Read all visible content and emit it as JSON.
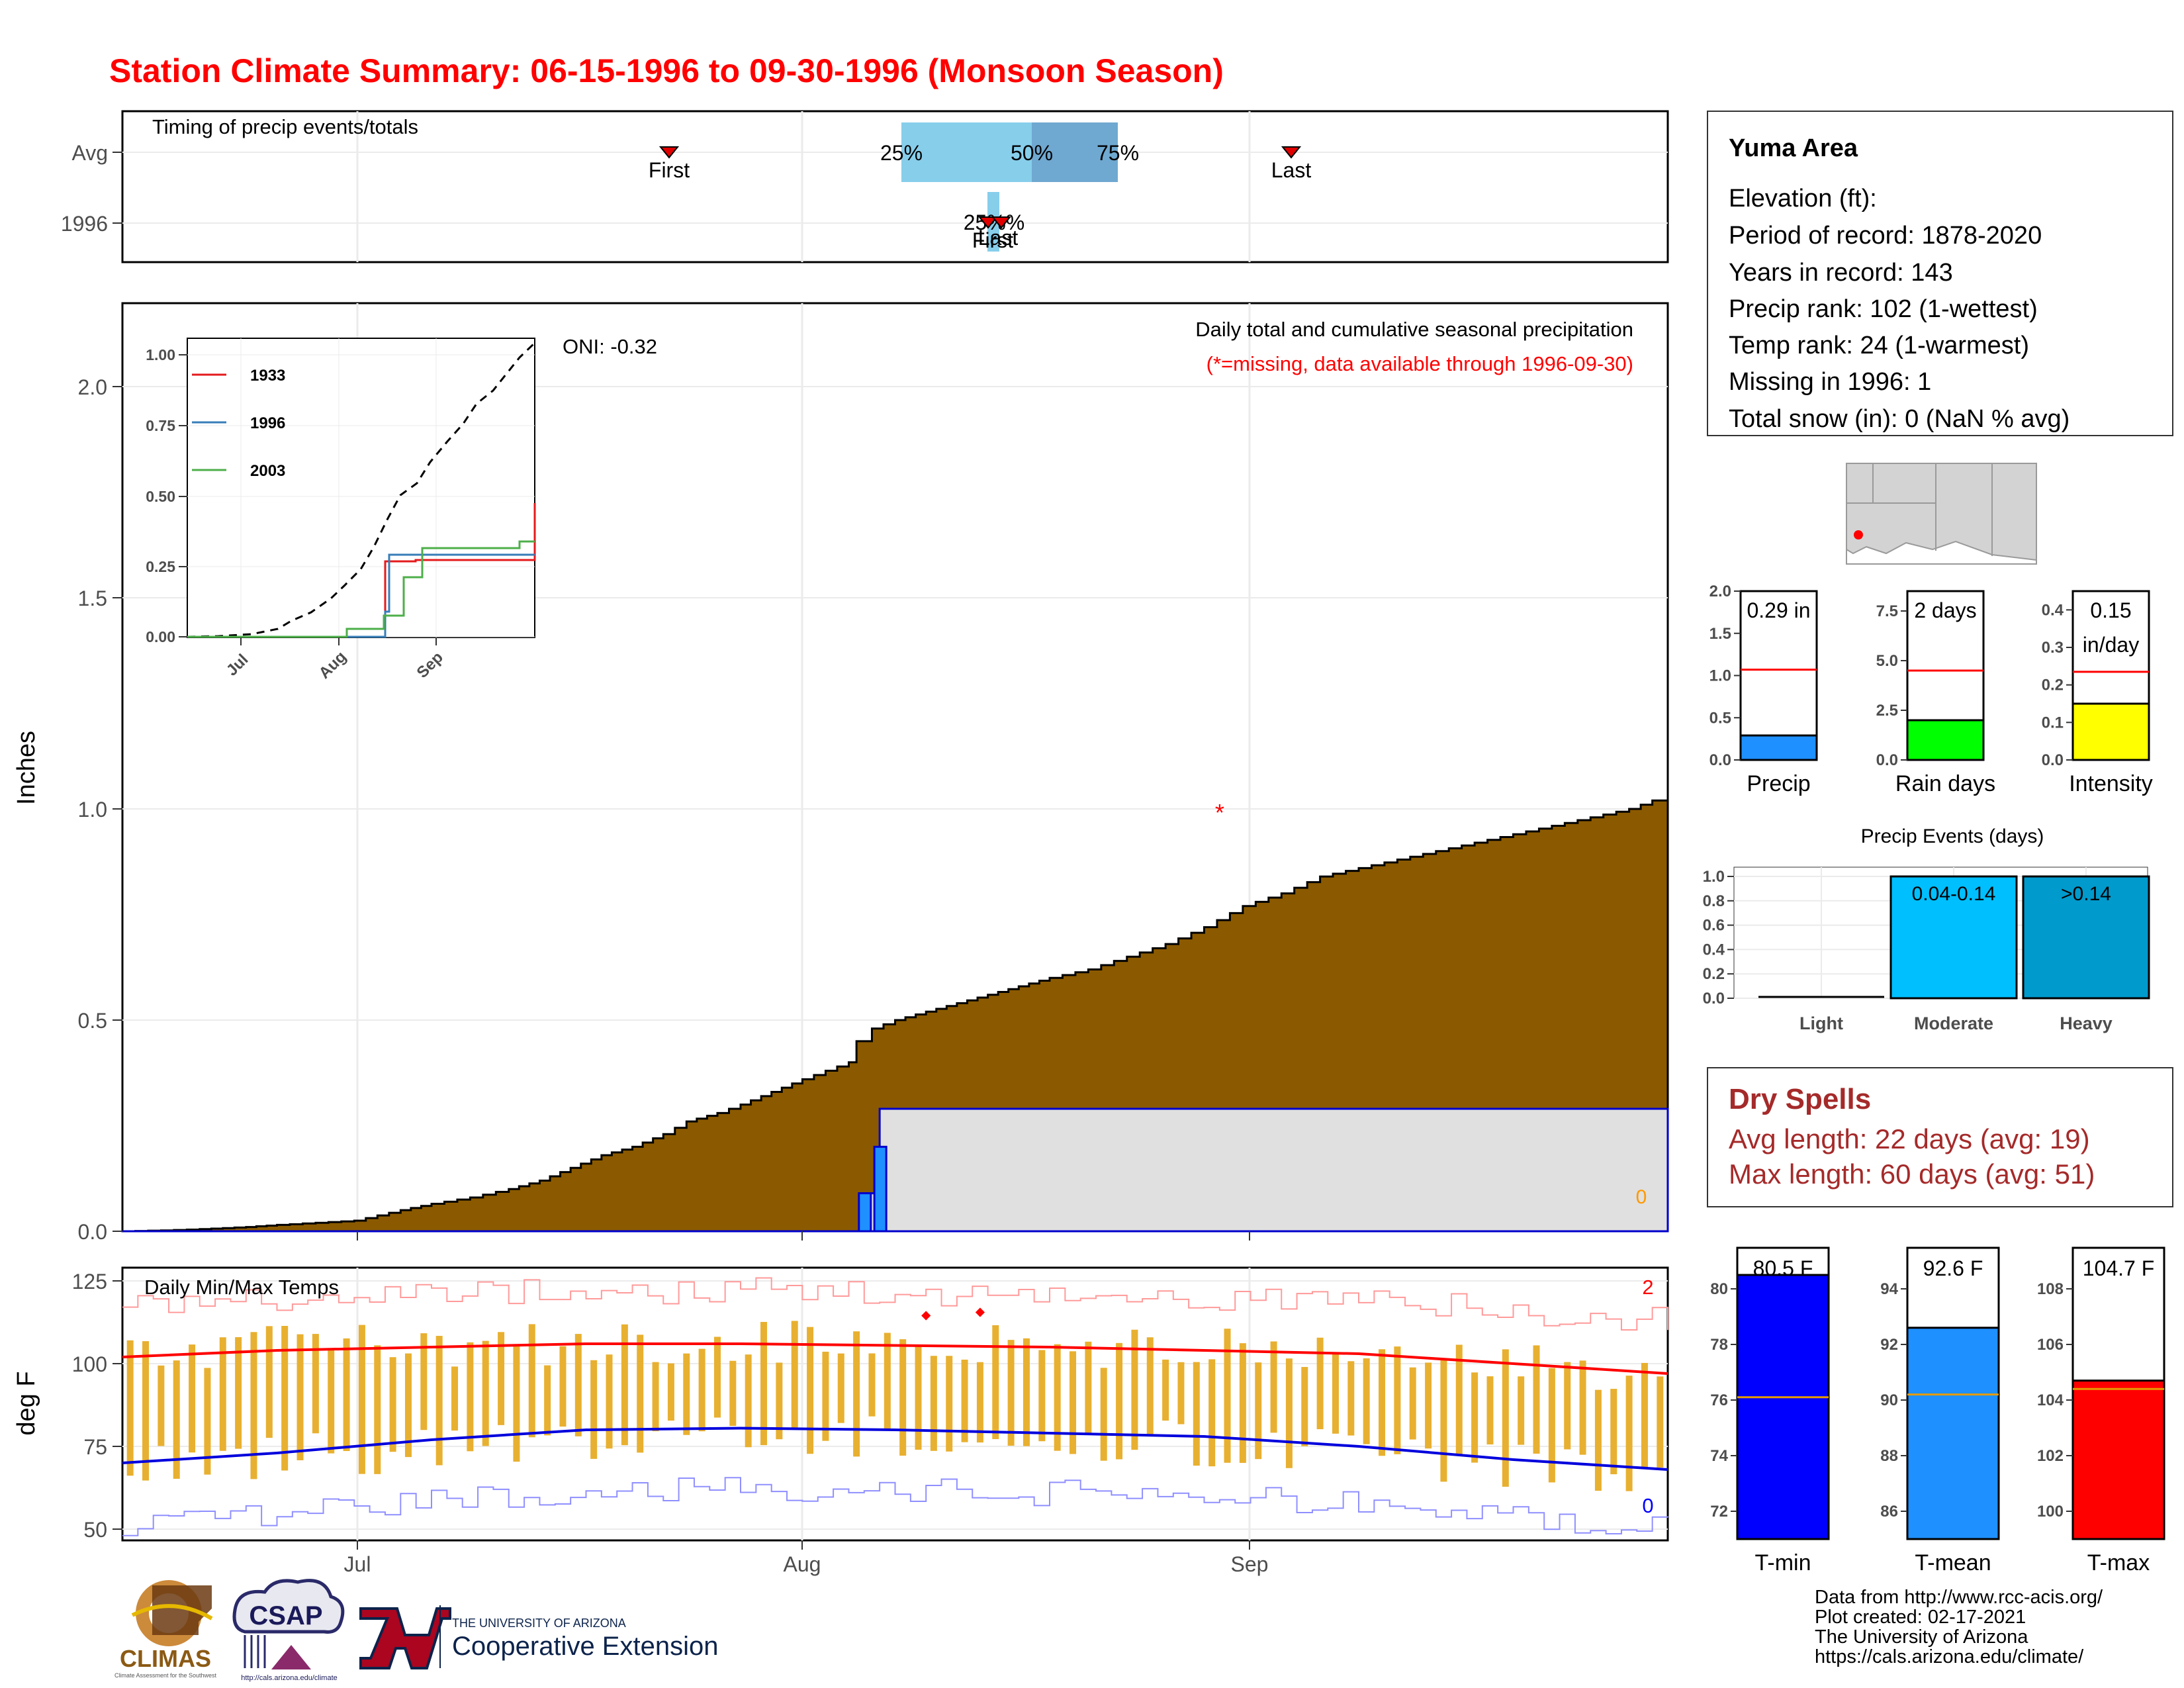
{
  "title": "Station Climate Summary: 06-15-1996 to 09-30-1996 (Monsoon Season)",
  "colors": {
    "title": "#ff0000",
    "precip_cum": "#8b5a00",
    "precip_cur": "#1e90ff",
    "tmin": "#0000ff",
    "tmax": "#ff0000",
    "trange": "#e8b030",
    "rain_days": "#00ff00",
    "intensity": "#ffff00",
    "moderate": "#00bfff",
    "heavy": "#009acd",
    "dry": "#a52a2a"
  },
  "timing": {
    "label": "Timing of precip events/totals",
    "rows": [
      "Avg",
      "1996"
    ],
    "avg": {
      "first_label": "First",
      "last_label": "Last",
      "p25": "25%",
      "p50": "50%",
      "p75": "75%"
    },
    "yr": {
      "overlap_label": "25%%",
      "first_label": "First",
      "last_label": "Last"
    }
  },
  "x_axis": {
    "ticks": [
      "Jul",
      "Aug",
      "Sep"
    ]
  },
  "precip": {
    "ylabel": "Inches",
    "title": "Daily total and cumulative seasonal precipitation",
    "subtitle": "(*=missing, data available through 1996-09-30)",
    "oni": "ONI: -0.32",
    "y_ticks": [
      "0.0",
      "0.5",
      "1.0",
      "1.5",
      "2.0"
    ],
    "missing_marker": "*",
    "count_label": "0",
    "chart_data": {
      "type": "area",
      "x_start": "06-15",
      "x_end": "09-30",
      "ylim": [
        0,
        2.2
      ],
      "avg_cumulative_points": [
        [
          0,
          0.0
        ],
        [
          5,
          0.002
        ],
        [
          10,
          0.005
        ],
        [
          16,
          0.01
        ],
        [
          20,
          0.015
        ],
        [
          25,
          0.02
        ],
        [
          30,
          0.025
        ],
        [
          36,
          0.05
        ],
        [
          40,
          0.065
        ],
        [
          45,
          0.08
        ],
        [
          50,
          0.1
        ],
        [
          54,
          0.12
        ],
        [
          58,
          0.15
        ],
        [
          62,
          0.18
        ],
        [
          66,
          0.2
        ],
        [
          70,
          0.23
        ],
        [
          73,
          0.26
        ],
        [
          77,
          0.28
        ],
        [
          80,
          0.3
        ],
        [
          84,
          0.33
        ],
        [
          88,
          0.36
        ],
        [
          91,
          0.38
        ],
        [
          94,
          0.4
        ],
        [
          95,
          0.45
        ],
        [
          97,
          0.48
        ],
        [
          100,
          0.5
        ],
        [
          104,
          0.52
        ],
        [
          108,
          0.54
        ],
        [
          112,
          0.56
        ],
        [
          116,
          0.58
        ],
        [
          120,
          0.6
        ],
        [
          125,
          0.62
        ],
        [
          130,
          0.65
        ],
        [
          135,
          0.68
        ],
        [
          140,
          0.72
        ],
        [
          145,
          0.77
        ],
        [
          150,
          0.8
        ],
        [
          155,
          0.84
        ],
        [
          160,
          0.86
        ],
        [
          165,
          0.88
        ],
        [
          170,
          0.9
        ],
        [
          175,
          0.92
        ],
        [
          180,
          0.94
        ],
        [
          185,
          0.96
        ],
        [
          190,
          0.98
        ],
        [
          195,
          1.0
        ],
        [
          198,
          1.02
        ],
        [
          200,
          1.05
        ]
      ],
      "current_cumulative_points": [
        [
          0,
          0
        ],
        [
          96,
          0
        ],
        [
          96,
          0.09
        ],
        [
          98,
          0.09
        ],
        [
          98,
          0.29
        ],
        [
          200,
          0.29
        ]
      ],
      "daily_bars": [
        {
          "day": 96,
          "value": 0.09
        },
        {
          "day": 98,
          "value": 0.2
        }
      ],
      "missing_day": 142,
      "missing_value": 1.0
    },
    "inset": {
      "y_ticks": [
        "0.00",
        "0.25",
        "0.50",
        "0.75",
        "1.00"
      ],
      "x_ticks": [
        "Jul",
        "Aug",
        "Sep"
      ],
      "legend": [
        {
          "name": "1933",
          "color": "#e41a1c"
        },
        {
          "name": "1996",
          "color": "#377eb8"
        },
        {
          "name": "2003",
          "color": "#4daf4a"
        }
      ]
    }
  },
  "temps": {
    "label": "Daily Min/Max Temps",
    "ylabel": "deg F",
    "y_ticks": [
      "50",
      "75",
      "100",
      "125"
    ],
    "count_max": "2",
    "count_min": "0",
    "chart_data": {
      "type": "line",
      "ylim": [
        45,
        128
      ],
      "avg_max": [
        [
          0,
          102
        ],
        [
          20,
          104
        ],
        [
          40,
          105
        ],
        [
          60,
          106
        ],
        [
          80,
          106
        ],
        [
          100,
          105.5
        ],
        [
          120,
          105
        ],
        [
          140,
          104
        ],
        [
          160,
          103
        ],
        [
          180,
          100
        ],
        [
          200,
          97
        ]
      ],
      "avg_min": [
        [
          0,
          70
        ],
        [
          20,
          73
        ],
        [
          40,
          77
        ],
        [
          60,
          80
        ],
        [
          80,
          80.5
        ],
        [
          100,
          80
        ],
        [
          120,
          79
        ],
        [
          140,
          78
        ],
        [
          160,
          75
        ],
        [
          180,
          71
        ],
        [
          200,
          68
        ]
      ],
      "record_max_days": [
        104,
        111
      ]
    }
  },
  "station": {
    "name": "Yuma Area",
    "lines": [
      "Elevation (ft):",
      "Period of record: 1878-2020",
      "Years in record: 143",
      "Precip rank: 102 (1-wettest)",
      "Temp rank: 24 (1-warmest)",
      "Missing in 1996: 1",
      "Total snow (in): 0 (NaN % avg)"
    ]
  },
  "summary_bars": [
    {
      "label": "Precip",
      "value_label": "0.29 in",
      "value": 0.29,
      "avg": 1.07,
      "ymax": 2.0,
      "ticks": [
        "0.0",
        "0.5",
        "1.0",
        "1.5",
        "2.0"
      ],
      "color": "#1e90ff"
    },
    {
      "label": "Rain days",
      "value_label": "2 days",
      "value": 2,
      "avg": 4.5,
      "ymax": 8.5,
      "ticks": [
        "0.0",
        "2.5",
        "5.0",
        "7.5"
      ],
      "color": "#00ff00"
    },
    {
      "label": "Intensity",
      "value_label": "0.15",
      "value_label2": "in/day",
      "value": 0.15,
      "avg": 0.235,
      "ymax": 0.45,
      "ticks": [
        "0.0",
        "0.1",
        "0.2",
        "0.3",
        "0.4"
      ],
      "color": "#ffff00"
    }
  ],
  "events": {
    "title": "Precip Events (days)",
    "ticks": [
      "0.0",
      "0.2",
      "0.4",
      "0.6",
      "0.8",
      "1.0"
    ],
    "chart_data": {
      "type": "bar",
      "categories": [
        "Light",
        "Moderate",
        "Heavy"
      ],
      "values": [
        0,
        1,
        1
      ],
      "bar_labels": [
        "",
        "0.04-0.14",
        ">0.14"
      ]
    }
  },
  "dry_spells": {
    "title": "Dry Spells",
    "avg": "Avg length: 22 days (avg: 19)",
    "max": "Max length: 60 days (avg: 51)"
  },
  "temp_bars": [
    {
      "label": "T-min",
      "value_label": "80.5 F",
      "value": 80.5,
      "avg": 76.1,
      "ymin": 71,
      "ymax": 81,
      "ticks": [
        "72",
        "74",
        "76",
        "78",
        "80"
      ],
      "color": "#0000ff"
    },
    {
      "label": "T-mean",
      "value_label": "92.6 F",
      "value": 92.6,
      "avg": 90.2,
      "ymin": 85,
      "ymax": 95,
      "ticks": [
        "86",
        "88",
        "90",
        "92",
        "94"
      ],
      "color": "#1e90ff"
    },
    {
      "label": "T-max",
      "value_label": "104.7 F",
      "value": 104.7,
      "avg": 104.4,
      "ymin": 99,
      "ymax": 109,
      "ticks": [
        "100",
        "102",
        "104",
        "106",
        "108"
      ],
      "color": "#ff0000"
    }
  ],
  "footer": {
    "lines": [
      "Data from http://www.rcc-acis.org/",
      "Plot created: 02-17-2021",
      "The University of Arizona",
      "https://cals.arizona.edu/climate/"
    ],
    "logos": {
      "climas": "CLIMAS",
      "climas_sub": "Climate Assessment for the Southwest",
      "csap": "CSAP",
      "csap_url": "http://cals.arizona.edu/climate",
      "ua_small": "THE UNIVERSITY OF ARIZONA",
      "ua_big": "Cooperative Extension"
    }
  }
}
